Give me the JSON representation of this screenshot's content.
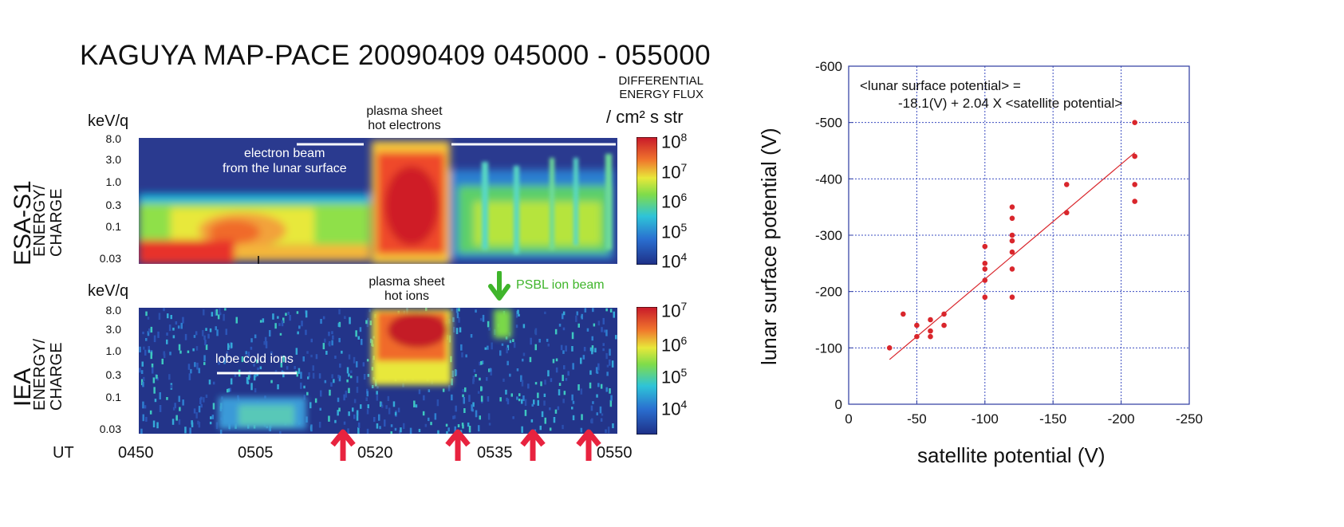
{
  "figure": {
    "title": "KAGUYA MAP-PACE  20090409    045000 - 055000",
    "colorbar_title_lines": [
      "DIFFERENTIAL",
      "ENERGY FLUX"
    ],
    "colorbar_unit": "/ cm² s str",
    "ut_label": "UT",
    "ut_ticks": [
      "0450",
      "0505",
      "0520",
      "0535",
      "0550"
    ],
    "event_arrow_color": "#e8233f"
  },
  "esa_panel": {
    "unit": "keV/q",
    "ytitle_instrument": "ESA-S1",
    "ytitle_lines": [
      "ENERGY/",
      "CHARGE"
    ],
    "yticks": [
      "8.0",
      "3.0",
      "1.0",
      "0.3",
      "0.1",
      "0.03"
    ],
    "annotation_top": "plasma sheet",
    "annotation_bottom": "hot electrons",
    "beam_label_1": "electron beam",
    "beam_label_2": "from the lunar surface",
    "colorbar_ticks": [
      {
        "base": "10",
        "exp": "8"
      },
      {
        "base": "10",
        "exp": "7"
      },
      {
        "base": "10",
        "exp": "6"
      },
      {
        "base": "10",
        "exp": "5"
      },
      {
        "base": "10",
        "exp": "4"
      }
    ]
  },
  "iea_panel": {
    "unit": "keV/q",
    "ytitle_instrument": "IEA",
    "ytitle_lines": [
      "ENERGY/",
      "CHARGE"
    ],
    "yticks": [
      "8.0",
      "3.0",
      "1.0",
      "0.3",
      "0.1",
      "0.03"
    ],
    "annotation_top": "plasma sheet",
    "annotation_bottom": "hot ions",
    "psbl_label": "PSBL ion beam",
    "lobe_label": "lobe cold ions",
    "colorbar_ticks": [
      {
        "base": "10",
        "exp": "7"
      },
      {
        "base": "10",
        "exp": "6"
      },
      {
        "base": "10",
        "exp": "5"
      },
      {
        "base": "10",
        "exp": "4"
      }
    ]
  },
  "chart_data": {
    "type": "scatter",
    "annotation_line1": "<lunar surface potential> =",
    "annotation_line2": "-18.1(V) + 2.04 X <satellite potential>",
    "xlabel": "satellite potential (V)",
    "ylabel": "lunar surface potential (V)",
    "xlim": [
      0,
      -250
    ],
    "ylim": [
      0,
      -600
    ],
    "xticks": [
      0,
      -50,
      -100,
      -150,
      -200,
      -250
    ],
    "xtick_labels": [
      "0",
      "-50",
      "-100",
      "-150",
      "-200",
      "-250"
    ],
    "yticks": [
      0,
      -100,
      -200,
      -300,
      -400,
      -500,
      -600
    ],
    "ytick_labels": [
      "0",
      "-100",
      "-200",
      "-300",
      "-400",
      "-500",
      "-600"
    ],
    "grid": true,
    "point_color": "#d9262c",
    "fit": {
      "intercept": -18.1,
      "slope": 2.04,
      "x_range": [
        -30,
        -210
      ]
    },
    "points": [
      {
        "x": -30,
        "y": -100
      },
      {
        "x": -40,
        "y": -160
      },
      {
        "x": -50,
        "y": -120
      },
      {
        "x": -50,
        "y": -140
      },
      {
        "x": -60,
        "y": -120
      },
      {
        "x": -60,
        "y": -130
      },
      {
        "x": -60,
        "y": -150
      },
      {
        "x": -70,
        "y": -140
      },
      {
        "x": -70,
        "y": -160
      },
      {
        "x": -100,
        "y": -190
      },
      {
        "x": -100,
        "y": -220
      },
      {
        "x": -100,
        "y": -240
      },
      {
        "x": -100,
        "y": -250
      },
      {
        "x": -100,
        "y": -280
      },
      {
        "x": -120,
        "y": -190
      },
      {
        "x": -120,
        "y": -240
      },
      {
        "x": -120,
        "y": -270
      },
      {
        "x": -120,
        "y": -290
      },
      {
        "x": -120,
        "y": -300
      },
      {
        "x": -120,
        "y": -330
      },
      {
        "x": -120,
        "y": -350
      },
      {
        "x": -160,
        "y": -340
      },
      {
        "x": -160,
        "y": -390
      },
      {
        "x": -210,
        "y": -360
      },
      {
        "x": -210,
        "y": -390
      },
      {
        "x": -210,
        "y": -440
      },
      {
        "x": -210,
        "y": -500
      }
    ]
  }
}
